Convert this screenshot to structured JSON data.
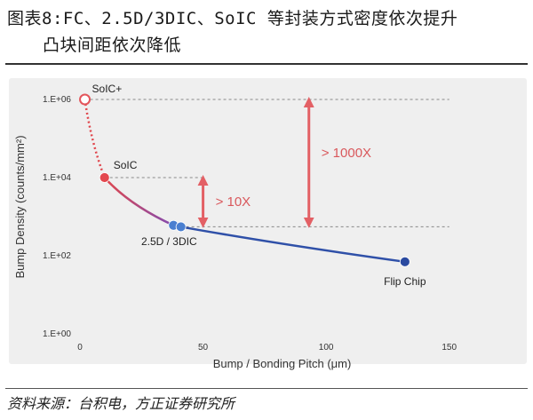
{
  "caption": {
    "line1": "图表8:FC、2.5D/3DIC、SoIC 等封装方式密度依次提升",
    "line2": "凸块间距依次降低"
  },
  "source": "资料来源：台积电，方正证券研究所",
  "chart_data": {
    "type": "line",
    "title": "",
    "xlabel": "Bump / Bonding Pitch (μm)",
    "ylabel": "Bump Density (counts/mm²)",
    "xlim": [
      0,
      175
    ],
    "ylim_log10": [
      0,
      6.5
    ],
    "log_scale_y": true,
    "grid": false,
    "x_ticks": [
      "0",
      "50",
      "100",
      "150"
    ],
    "y_ticks": [
      "1.E+00",
      "1.E+02",
      "1.E+04",
      "1.E+06"
    ],
    "series": [
      {
        "x": [
          2,
          10,
          38,
          41,
          132
        ],
        "y": [
          1000000,
          10000,
          600,
          550,
          70
        ]
      }
    ],
    "points": [
      {
        "label": "SoIC+",
        "x": 2,
        "y": 1000000,
        "color": "#e3565c",
        "hollow": true
      },
      {
        "label": "SoIC",
        "x": 10,
        "y": 10000,
        "color": "#e3474e",
        "hollow": false
      },
      {
        "label": "2.5D / 3DIC",
        "x": 38,
        "y": 600,
        "color": "#4a7fd0",
        "hollow": false
      },
      {
        "label": "",
        "x": 41,
        "y": 550,
        "color": "#4a7fd0",
        "hollow": false
      },
      {
        "label": "Flip Chip",
        "x": 132,
        "y": 70,
        "color": "#2a4aa0",
        "hollow": false
      }
    ],
    "annotations": [
      {
        "text": "> 10X",
        "from": 10000,
        "to": 600
      },
      {
        "text": "> 1000X",
        "from": 1000000,
        "to": 600
      }
    ],
    "colors": {
      "panel_bg": "#efefef",
      "line_start": "#e0474d",
      "line_mid": "#8b4aa6",
      "line_end": "#2f50a8",
      "annotation": "#e36065"
    }
  }
}
